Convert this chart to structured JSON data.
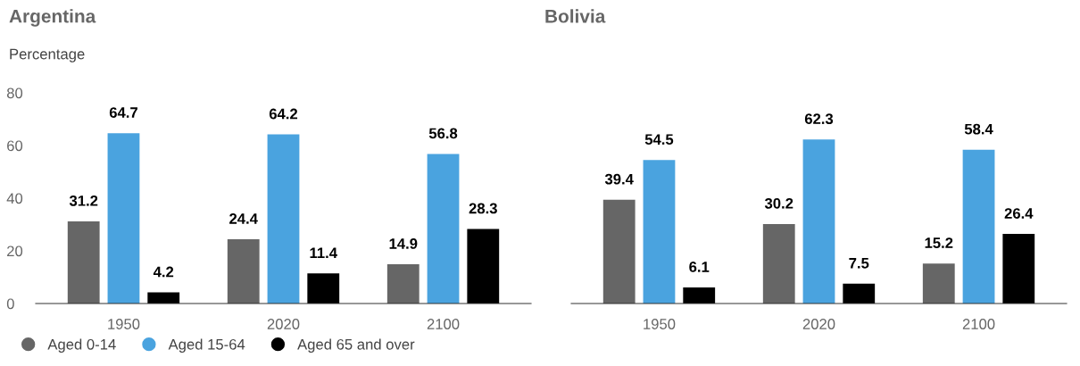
{
  "chart_data": [
    {
      "type": "bar",
      "title": "Argentina",
      "ylabel": "Percentage",
      "categories": [
        "1950",
        "2020",
        "2100"
      ],
      "ylim": [
        0,
        80
      ],
      "yticks": [
        0,
        20,
        40,
        60,
        80
      ],
      "data_labels": true,
      "legend": "bottom",
      "grid": false,
      "series": [
        {
          "name": "Aged 0-14",
          "color": "#666666",
          "values": [
            31.2,
            24.4,
            14.9
          ]
        },
        {
          "name": "Aged 15-64",
          "color": "#4aa3df",
          "values": [
            64.7,
            64.2,
            56.8
          ]
        },
        {
          "name": "Aged 65 and over",
          "color": "#000000",
          "values": [
            4.2,
            11.4,
            28.3
          ]
        }
      ]
    },
    {
      "type": "bar",
      "title": "Bolivia",
      "categories": [
        "1950",
        "2020",
        "2100"
      ],
      "ylim": [
        0,
        80
      ],
      "tick_labels": "x",
      "data_labels": true,
      "grid": false,
      "series": [
        {
          "color": "#666666",
          "values": [
            39.4,
            30.2,
            15.2
          ]
        },
        {
          "color": "#4aa3df",
          "values": [
            54.5,
            62.3,
            58.4
          ]
        },
        {
          "color": "#000000",
          "values": [
            6.1,
            7.5,
            26.4
          ]
        }
      ]
    }
  ]
}
